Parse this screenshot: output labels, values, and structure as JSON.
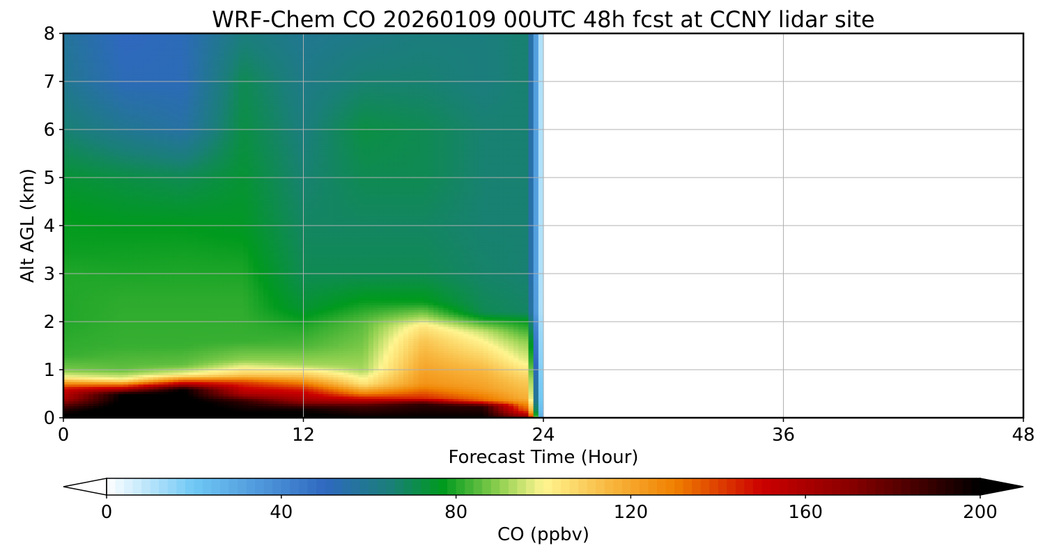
{
  "chart_data": {
    "type": "heatmap",
    "title": "WRF-Chem CO  20260109 00UTC 48h fcst at CCNY lidar site",
    "xlabel": "Forecast Time (Hour)",
    "ylabel": "Alt AGL (km)",
    "xlim": [
      0,
      48
    ],
    "ylim": [
      0,
      8
    ],
    "x_ticks": [
      "0",
      "12",
      "24",
      "36",
      "48"
    ],
    "y_ticks": [
      "0",
      "1",
      "2",
      "3",
      "4",
      "5",
      "6",
      "7",
      "8"
    ],
    "grid": true,
    "data_coverage_hours": [
      0,
      24
    ],
    "colorbar": {
      "label": "CO  (ppbv)",
      "min": 0,
      "max": 200,
      "ticks": [
        "0",
        "40",
        "80",
        "120",
        "160",
        "200"
      ],
      "extend": "both",
      "orientation": "horizontal",
      "placement": "bottom",
      "color_stops": [
        {
          "value": 0,
          "color": "#ffffff"
        },
        {
          "value": 20,
          "color": "#6fc8f5"
        },
        {
          "value": 50,
          "color": "#2f68c0"
        },
        {
          "value": 65,
          "color": "#1a7f78"
        },
        {
          "value": 77,
          "color": "#009a1e"
        },
        {
          "value": 90,
          "color": "#90d050"
        },
        {
          "value": 100,
          "color": "#fff590"
        },
        {
          "value": 115,
          "color": "#f8b840"
        },
        {
          "value": 130,
          "color": "#f08000"
        },
        {
          "value": 150,
          "color": "#cc0000"
        },
        {
          "value": 170,
          "color": "#8a0000"
        },
        {
          "value": 190,
          "color": "#300000"
        },
        {
          "value": 200,
          "color": "#000000"
        }
      ]
    },
    "profiles": [
      {
        "hour": 0,
        "levels": [
          {
            "alt": 0,
            "value": 205
          },
          {
            "alt": 0.2,
            "value": 190
          },
          {
            "alt": 0.4,
            "value": 160
          },
          {
            "alt": 0.6,
            "value": 150
          },
          {
            "alt": 0.75,
            "value": 120
          },
          {
            "alt": 0.85,
            "value": 100
          },
          {
            "alt": 1.0,
            "value": 88
          },
          {
            "alt": 1.3,
            "value": 82
          },
          {
            "alt": 2.0,
            "value": 80
          },
          {
            "alt": 3.0,
            "value": 80
          },
          {
            "alt": 3.5,
            "value": 78
          },
          {
            "alt": 4.3,
            "value": 77
          },
          {
            "alt": 5.0,
            "value": 74
          },
          {
            "alt": 6.0,
            "value": 66
          },
          {
            "alt": 7.0,
            "value": 60
          },
          {
            "alt": 8.0,
            "value": 58
          }
        ]
      },
      {
        "hour": 3,
        "levels": [
          {
            "alt": 0,
            "value": 210
          },
          {
            "alt": 0.5,
            "value": 200
          },
          {
            "alt": 0.6,
            "value": 160
          },
          {
            "alt": 0.7,
            "value": 130
          },
          {
            "alt": 0.8,
            "value": 100
          },
          {
            "alt": 1.0,
            "value": 86
          },
          {
            "alt": 1.5,
            "value": 82
          },
          {
            "alt": 2.5,
            "value": 81
          },
          {
            "alt": 3.2,
            "value": 79
          },
          {
            "alt": 4.0,
            "value": 77
          },
          {
            "alt": 5.0,
            "value": 72
          },
          {
            "alt": 6.0,
            "value": 60
          },
          {
            "alt": 7.0,
            "value": 52
          },
          {
            "alt": 8.0,
            "value": 50
          }
        ]
      },
      {
        "hour": 6,
        "levels": [
          {
            "alt": 0,
            "value": 210
          },
          {
            "alt": 0.6,
            "value": 200
          },
          {
            "alt": 0.7,
            "value": 160
          },
          {
            "alt": 0.8,
            "value": 130
          },
          {
            "alt": 0.9,
            "value": 100
          },
          {
            "alt": 1.1,
            "value": 86
          },
          {
            "alt": 1.5,
            "value": 82
          },
          {
            "alt": 2.5,
            "value": 81
          },
          {
            "alt": 3.3,
            "value": 79
          },
          {
            "alt": 4.0,
            "value": 77
          },
          {
            "alt": 5.0,
            "value": 70
          },
          {
            "alt": 6.0,
            "value": 56
          },
          {
            "alt": 7.0,
            "value": 52
          },
          {
            "alt": 8.0,
            "value": 52
          }
        ]
      },
      {
        "hour": 9,
        "levels": [
          {
            "alt": 0,
            "value": 205
          },
          {
            "alt": 0.35,
            "value": 190
          },
          {
            "alt": 0.5,
            "value": 160
          },
          {
            "alt": 0.75,
            "value": 140
          },
          {
            "alt": 0.9,
            "value": 110
          },
          {
            "alt": 1.2,
            "value": 90
          },
          {
            "alt": 1.6,
            "value": 82
          },
          {
            "alt": 2.5,
            "value": 81
          },
          {
            "alt": 3.2,
            "value": 79
          },
          {
            "alt": 4.0,
            "value": 76
          },
          {
            "alt": 5.0,
            "value": 74
          },
          {
            "alt": 6.0,
            "value": 72
          },
          {
            "alt": 7.0,
            "value": 70
          },
          {
            "alt": 8.0,
            "value": 64
          }
        ]
      },
      {
        "hour": 12,
        "levels": [
          {
            "alt": 0,
            "value": 205
          },
          {
            "alt": 0.2,
            "value": 195
          },
          {
            "alt": 0.35,
            "value": 165
          },
          {
            "alt": 0.6,
            "value": 145
          },
          {
            "alt": 0.85,
            "value": 115
          },
          {
            "alt": 1.1,
            "value": 92
          },
          {
            "alt": 1.5,
            "value": 84
          },
          {
            "alt": 1.9,
            "value": 80
          },
          {
            "alt": 2.3,
            "value": 74
          },
          {
            "alt": 3.0,
            "value": 70
          },
          {
            "alt": 4.0,
            "value": 68
          },
          {
            "alt": 5.0,
            "value": 66
          },
          {
            "alt": 6.0,
            "value": 64
          },
          {
            "alt": 7.0,
            "value": 62
          },
          {
            "alt": 8.0,
            "value": 60
          }
        ]
      },
      {
        "hour": 15,
        "levels": [
          {
            "alt": 0,
            "value": 200
          },
          {
            "alt": 0.25,
            "value": 185
          },
          {
            "alt": 0.35,
            "value": 160
          },
          {
            "alt": 0.5,
            "value": 130
          },
          {
            "alt": 0.7,
            "value": 105
          },
          {
            "alt": 1.0,
            "value": 92
          },
          {
            "alt": 1.5,
            "value": 88
          },
          {
            "alt": 2.0,
            "value": 85
          },
          {
            "alt": 2.4,
            "value": 78
          },
          {
            "alt": 3.0,
            "value": 70
          },
          {
            "alt": 4.0,
            "value": 68
          },
          {
            "alt": 5.0,
            "value": 70
          },
          {
            "alt": 6.0,
            "value": 72
          },
          {
            "alt": 7.0,
            "value": 66
          },
          {
            "alt": 8.0,
            "value": 62
          }
        ]
      },
      {
        "hour": 18,
        "levels": [
          {
            "alt": 0,
            "value": 200
          },
          {
            "alt": 0.3,
            "value": 190
          },
          {
            "alt": 0.4,
            "value": 145
          },
          {
            "alt": 0.7,
            "value": 125
          },
          {
            "alt": 1.2,
            "value": 118
          },
          {
            "alt": 1.6,
            "value": 112
          },
          {
            "alt": 1.9,
            "value": 104
          },
          {
            "alt": 2.1,
            "value": 92
          },
          {
            "alt": 2.4,
            "value": 78
          },
          {
            "alt": 3.0,
            "value": 70
          },
          {
            "alt": 4.0,
            "value": 68
          },
          {
            "alt": 5.0,
            "value": 70
          },
          {
            "alt": 6.0,
            "value": 70
          },
          {
            "alt": 7.0,
            "value": 66
          },
          {
            "alt": 8.0,
            "value": 64
          }
        ]
      },
      {
        "hour": 21,
        "levels": [
          {
            "alt": 0,
            "value": 200
          },
          {
            "alt": 0.25,
            "value": 190
          },
          {
            "alt": 0.35,
            "value": 135
          },
          {
            "alt": 0.6,
            "value": 122
          },
          {
            "alt": 1.0,
            "value": 115
          },
          {
            "alt": 1.4,
            "value": 105
          },
          {
            "alt": 1.8,
            "value": 95
          },
          {
            "alt": 2.0,
            "value": 82
          },
          {
            "alt": 2.2,
            "value": 70
          },
          {
            "alt": 3.0,
            "value": 67
          },
          {
            "alt": 4.0,
            "value": 66
          },
          {
            "alt": 5.0,
            "value": 66
          },
          {
            "alt": 6.0,
            "value": 66
          },
          {
            "alt": 7.0,
            "value": 64
          },
          {
            "alt": 8.0,
            "value": 64
          }
        ]
      },
      {
        "hour": 23,
        "levels": [
          {
            "alt": 0,
            "value": 175
          },
          {
            "alt": 0.15,
            "value": 140
          },
          {
            "alt": 0.4,
            "value": 118
          },
          {
            "alt": 0.8,
            "value": 110
          },
          {
            "alt": 1.2,
            "value": 98
          },
          {
            "alt": 1.6,
            "value": 90
          },
          {
            "alt": 2.0,
            "value": 78
          },
          {
            "alt": 2.2,
            "value": 68
          },
          {
            "alt": 3.0,
            "value": 66
          },
          {
            "alt": 4.0,
            "value": 66
          },
          {
            "alt": 5.0,
            "value": 66
          },
          {
            "alt": 6.0,
            "value": 66
          },
          {
            "alt": 7.0,
            "value": 66
          },
          {
            "alt": 8.0,
            "value": 66
          }
        ]
      }
    ]
  }
}
